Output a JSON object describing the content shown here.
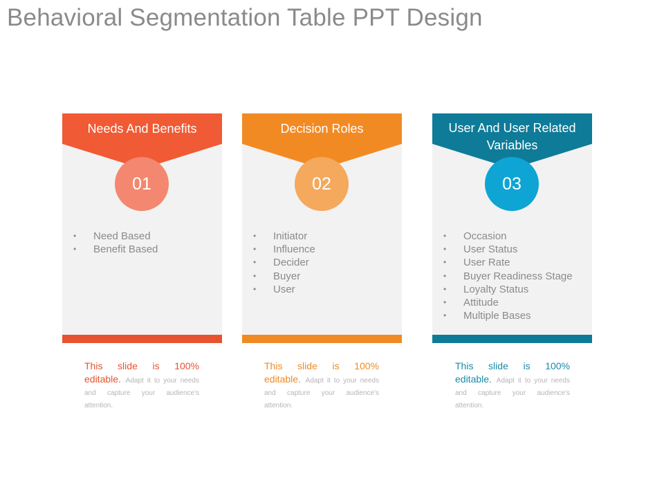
{
  "title": "Behavioral Segmentation Table PPT Design",
  "cards": [
    {
      "heading_lines": [
        "Needs And Benefits"
      ],
      "number": "01",
      "items": [
        "Need Based",
        "Benefit Based"
      ],
      "note_lead": "This slide is 100% editable.",
      "note_rest": "Adapt it to your needs and capture your audience's attention.",
      "banner_color": "#f05a34",
      "badge_color": "#f3876f",
      "bar_color": "#e8522f",
      "note_color": "#e8522f"
    },
    {
      "heading_lines": [
        "Decision Roles"
      ],
      "number": "02",
      "items": [
        "Initiator",
        "Influence",
        "Decider",
        "Buyer",
        "User"
      ],
      "note_lead": "This slide is 100% editable.",
      "note_rest": "Adapt it to your needs and capture your audience's attention.",
      "banner_color": "#f28a24",
      "badge_color": "#f4a95d",
      "bar_color": "#f08a24",
      "note_color": "#f08a24"
    },
    {
      "heading_lines": [
        "User And User Related",
        "Variables"
      ],
      "number": "03",
      "items": [
        "Occasion",
        "User Status",
        "User Rate",
        "Buyer Readiness Stage",
        "Loyalty Status",
        "Attitude",
        "Multiple Bases"
      ],
      "note_lead": "This slide is 100% editable.",
      "note_rest": "Adapt it to your needs and capture your audience's attention.",
      "banner_color": "#0e7b98",
      "badge_color": "#0ea5d4",
      "bar_color": "#0e7b98",
      "note_color": "#1a8aa8"
    }
  ]
}
